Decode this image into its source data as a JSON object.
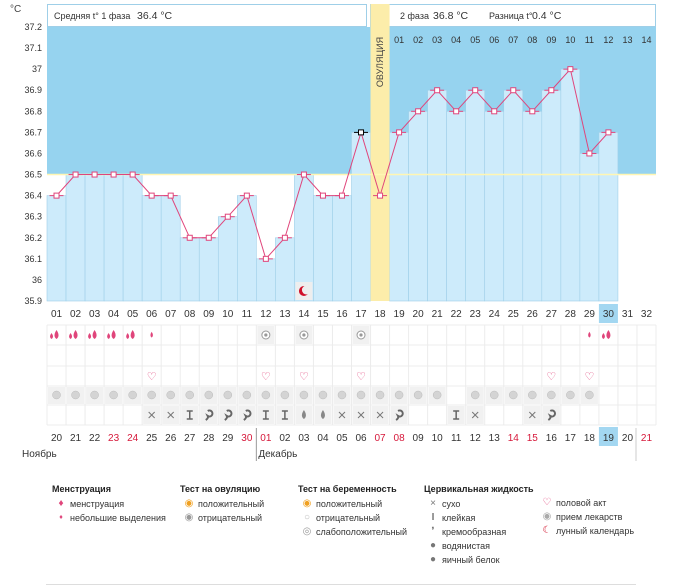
{
  "header": {
    "unit": "°C",
    "phase1_label": "Средняя t° 1 фаза",
    "phase1_value": "36.4 °C",
    "phase2_label": "2 фаза",
    "phase2_value": "36.8 °C",
    "diff_label": "Разница t°",
    "diff_value": "0.4 °C",
    "ovulation_label": "ОВУЛЯЦИЯ"
  },
  "months": {
    "m1": "Ноябрь",
    "m2": "Декабрь"
  },
  "colors": {
    "low_bg": "#ffffff",
    "high_bg": "#96d3ef",
    "bar_fill": "#cdebfb",
    "bar_stroke": "#9fcfe8",
    "line": "#e0457b",
    "ovulation": "#fcedaa",
    "coverline": "#fff6b3",
    "today": "#a3d7f1",
    "weekend_text": "#d6183a"
  },
  "chart_data": {
    "type": "bar",
    "ylim": [
      35.9,
      37.2
    ],
    "yticks": [
      "35.9",
      "36",
      "36.1",
      "36.2",
      "36.3",
      "36.4",
      "36.5",
      "36.6",
      "36.7",
      "36.8",
      "36.9",
      "37",
      "37.1",
      "37.2"
    ],
    "coverline": 36.5,
    "ovulation_day": 18,
    "cycle_days": [
      "01",
      "02",
      "03",
      "04",
      "05",
      "06",
      "07",
      "08",
      "09",
      "10",
      "11",
      "12",
      "13",
      "14",
      "15",
      "16",
      "17",
      "18",
      "19",
      "20",
      "21",
      "22",
      "23",
      "24",
      "25",
      "26",
      "27",
      "28",
      "29",
      "30",
      "31",
      "32"
    ],
    "top_phase2_days": [
      "01",
      "02",
      "03",
      "04",
      "05",
      "06",
      "07",
      "08",
      "09",
      "10",
      "11",
      "12",
      "13",
      "14"
    ],
    "dates": [
      "20",
      "21",
      "22",
      "23",
      "24",
      "25",
      "26",
      "27",
      "28",
      "29",
      "30",
      "01",
      "02",
      "03",
      "04",
      "05",
      "06",
      "07",
      "08",
      "09",
      "10",
      "11",
      "12",
      "13",
      "14",
      "15",
      "16",
      "17",
      "18",
      "19",
      "20",
      "21"
    ],
    "weekend_index": [
      3,
      4,
      10,
      11,
      17,
      18,
      24,
      25,
      31
    ],
    "today_index": 29,
    "temperatures": [
      36.4,
      36.5,
      36.5,
      36.5,
      36.5,
      36.4,
      36.4,
      36.2,
      36.2,
      36.3,
      36.4,
      36.1,
      36.2,
      36.5,
      36.4,
      36.4,
      36.7,
      36.4,
      36.7,
      36.8,
      36.9,
      36.8,
      36.9,
      36.8,
      36.9,
      36.8,
      36.9,
      37.0,
      36.6,
      36.7,
      null,
      null
    ],
    "menstruation": [
      2,
      2,
      2,
      2,
      2,
      1,
      0,
      0,
      0,
      0,
      0,
      0,
      0,
      0,
      0,
      0,
      0,
      0,
      0,
      0,
      0,
      0,
      0,
      0,
      0,
      0,
      0,
      0,
      1,
      2,
      0,
      0
    ],
    "ovulation_test_negative": [
      12,
      14,
      17
    ],
    "intercourse": [
      6,
      12,
      14,
      17,
      27,
      29
    ],
    "pill": [
      1,
      2,
      3,
      4,
      5,
      6,
      7,
      8,
      9,
      10,
      11,
      12,
      13,
      14,
      15,
      16,
      17,
      18,
      19,
      20,
      21,
      23,
      24,
      25,
      26,
      27,
      28,
      29
    ],
    "cervical": {
      "6": "x",
      "7": "x",
      "8": "T",
      "9": "C",
      "10": "C",
      "11": "C",
      "12": "T",
      "13": "T",
      "14": "W",
      "15": "W",
      "16": "x",
      "17": "x",
      "18": "x",
      "19": "C",
      "22": "T",
      "23": "x",
      "26": "x",
      "27": "C"
    },
    "moon_day": 14
  },
  "legend": {
    "menstruation": {
      "title": "Менструация",
      "items": [
        "менструация",
        "небольшие выделения"
      ]
    },
    "ovulation_test": {
      "title": "Тест на овуляцию",
      "items": [
        "положительный",
        "отрицательный"
      ]
    },
    "pregnancy_test": {
      "title": "Тест на беременность",
      "items": [
        "положительный",
        "отрицательный",
        "слабоположительный"
      ]
    },
    "cervical": {
      "title": "Цервикальная жидкость",
      "items": [
        "сухо",
        "клейкая",
        "кремообразная",
        "водянистая",
        "яичный белок"
      ]
    },
    "other": {
      "items": [
        "половой акт",
        "прием лекарств",
        "лунный календарь"
      ]
    }
  }
}
